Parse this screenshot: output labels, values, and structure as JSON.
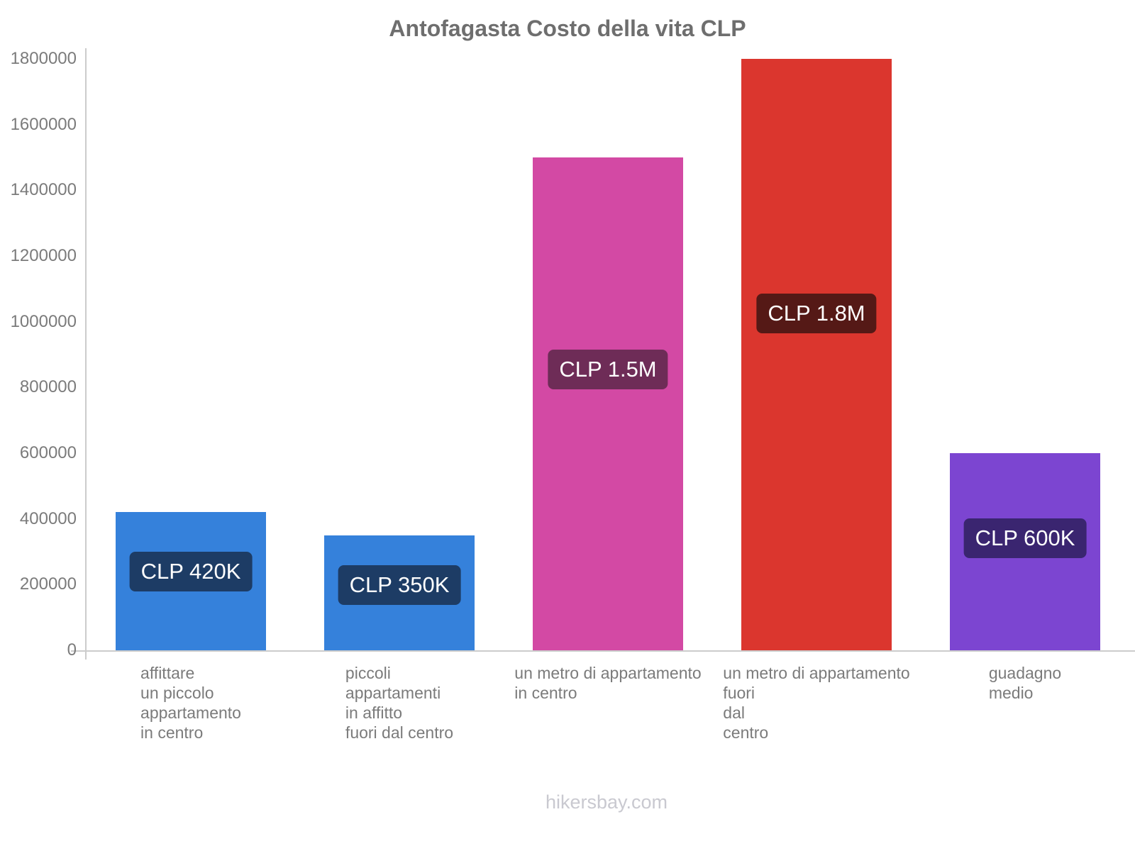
{
  "title": "Antofagasta Costo della vita CLP",
  "footer": "hikersbay.com",
  "chart_data": {
    "type": "bar",
    "title": "Antofagasta Costo della vita CLP",
    "currency": "CLP",
    "categories": [
      [
        "affittare",
        "un piccolo",
        "appartamento",
        "in centro"
      ],
      [
        "piccoli",
        "appartamenti",
        "in affitto",
        "fuori dal centro"
      ],
      [
        "un metro di appartamento",
        "in centro"
      ],
      [
        "un metro di appartamento",
        "fuori",
        "dal",
        "centro"
      ],
      [
        "guadagno",
        "medio"
      ]
    ],
    "values": [
      420000,
      350000,
      1500000,
      1800000,
      600000
    ],
    "value_labels": [
      "CLP 420K",
      "CLP 350K",
      "CLP 1.5M",
      "CLP 1.8M",
      "CLP 600K"
    ],
    "bar_colors": [
      "#3581db",
      "#3581db",
      "#d349a4",
      "#db362e",
      "#7c45d1"
    ],
    "value_label_bg_colors": [
      "#1d3c65",
      "#1d3c65",
      "#6e2c57",
      "#551916",
      "#3a2570"
    ],
    "xlabel": "",
    "ylabel": "",
    "ylim": [
      0,
      1800000
    ],
    "ytick_step": 200000,
    "ytick_labels": [
      "0",
      "200000",
      "400000",
      "600000",
      "800000",
      "1000000",
      "1200000",
      "1400000",
      "1600000",
      "1800000"
    ],
    "grid": false,
    "legend": false,
    "axis_color": "#cccccc",
    "tick_text_color": "#7b7b7b",
    "title_color": "#6e6e6e",
    "footer_color": "#c9c9d0"
  }
}
